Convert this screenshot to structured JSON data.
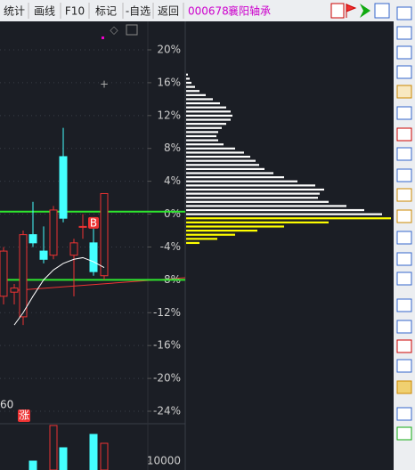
{
  "toolbar": {
    "buttons": [
      "统计",
      "画线",
      "F10",
      "标记",
      "-自选",
      "返回"
    ],
    "code": "000678",
    "name": "襄阳轴承"
  },
  "chart": {
    "ylim": [
      -26,
      22
    ],
    "yticks": [
      {
        "value": 20,
        "label": "20%"
      },
      {
        "value": 16,
        "label": "16%"
      },
      {
        "value": 12,
        "label": "12%"
      },
      {
        "value": 8,
        "label": "8%"
      },
      {
        "value": 4,
        "label": "4%"
      },
      {
        "value": 0,
        "label": "0%"
      },
      {
        "value": -4,
        "label": "-4%"
      },
      {
        "value": -8,
        "label": "-8%"
      },
      {
        "value": -12,
        "label": "-12%"
      },
      {
        "value": -16,
        "label": "-16%"
      },
      {
        "value": -20,
        "label": "-20%"
      },
      {
        "value": -24,
        "label": "-24%"
      }
    ],
    "candles": [
      {
        "x": 4,
        "open": -10,
        "close": -4.5,
        "high": -4,
        "low": -11
      },
      {
        "x": 16,
        "open": -9.5,
        "close": -9,
        "high": -8.5,
        "low": -11
      },
      {
        "x": 26,
        "open": -12.5,
        "close": -2.5,
        "high": -2,
        "low": -13.5
      },
      {
        "x": 37,
        "open": -2.5,
        "close": -3.5,
        "high": 1.5,
        "low": -4
      },
      {
        "x": 49,
        "open": -4.5,
        "close": -5.5,
        "high": -1.5,
        "low": -6
      },
      {
        "x": 60,
        "open": -5,
        "close": 0.5,
        "high": 1,
        "low": -5.5
      },
      {
        "x": 71,
        "open": 7,
        "close": -0.5,
        "high": 10.5,
        "low": -1
      },
      {
        "x": 83,
        "open": -5,
        "close": -3.5,
        "high": -3,
        "low": -10
      },
      {
        "x": 93,
        "open": -1.5,
        "close": -1.5,
        "high": 0,
        "low": -3
      },
      {
        "x": 105,
        "open": -3.5,
        "close": -7,
        "high": -0.5,
        "low": -7.5
      },
      {
        "x": 117,
        "open": -7.5,
        "close": 2.5,
        "high": 2.5,
        "low": -8
      }
    ],
    "ma": [
      -13.5,
      -12,
      -10,
      -8,
      -6.8,
      -6,
      -5.5,
      -5.3,
      -5.8,
      -6.5
    ],
    "green_levels": [
      0.3,
      -8
    ],
    "marker": "B",
    "period_label": "60",
    "rise_label": "涨",
    "profile": {
      "top": 17,
      "step": 0.5,
      "lengths": [
        2,
        4,
        6,
        10,
        15,
        22,
        30,
        38,
        45,
        50,
        52,
        50,
        45,
        40,
        36,
        34,
        36,
        42,
        55,
        65,
        72,
        78,
        82,
        88,
        98,
        110,
        125,
        145,
        155,
        150,
        148,
        160,
        180,
        200,
        220,
        230,
        160,
        110,
        80,
        55,
        35,
        15
      ]
    },
    "volume": {
      "ylim": [
        0,
        50000
      ],
      "yticks": [
        10000
      ],
      "values": [
        null,
        null,
        null,
        10000,
        null,
        50000,
        25000,
        null,
        null,
        40000,
        30000
      ]
    }
  }
}
